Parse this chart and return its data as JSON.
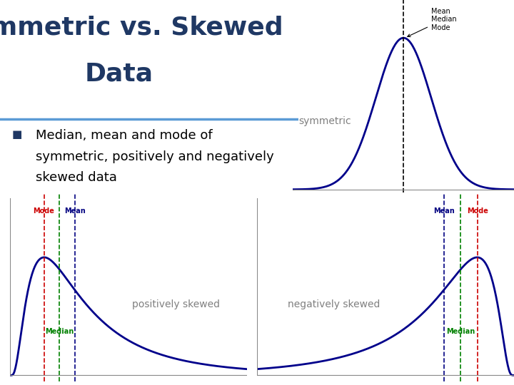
{
  "bg_color": "#ffffff",
  "title_color": "#1f3864",
  "title_fontsize": 26,
  "bullet_color": "#000000",
  "bullet_fontsize": 13,
  "curve_color": "#00008b",
  "sym_label": "symmetric",
  "sym_label_color": "#808080",
  "pos_label": "positively skewed",
  "pos_label_color": "#808080",
  "neg_label": "negatively skewed",
  "neg_label_color": "#808080",
  "mode_color": "#cc0000",
  "median_color": "#008000",
  "mean_color": "#000080",
  "divider_color": "#5b9bd5",
  "square_color": "#1f3864"
}
